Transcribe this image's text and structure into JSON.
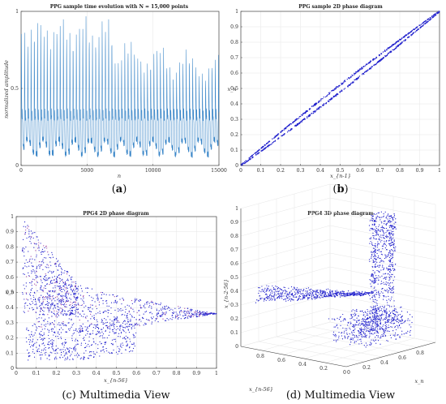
{
  "colors": {
    "series_a": "#3a86c8",
    "series_dark": "#2020cc",
    "axis": "#444444",
    "grid": "#e6e6e6"
  },
  "chart_data": [
    {
      "id": "a",
      "type": "line",
      "title": "PPG sample time evolution with N = 15,000 points",
      "xlabel": "n",
      "ylabel": "normalized amplitude",
      "xlim": [
        0,
        15000
      ],
      "ylim": [
        0,
        1
      ],
      "xticks": [
        "0",
        "5000",
        "10000",
        "15000"
      ],
      "yticks": [
        "0",
        "0.5",
        "1"
      ],
      "caption_letter": "a",
      "series": [
        {
          "approx": "periodic pulses, peaks ~0.55–1.0 (decreasing after n≈7000), troughs ~0.08–0.2, baseline band ~0.3–0.35"
        }
      ]
    },
    {
      "id": "b",
      "type": "scatter",
      "title": "PPG sample 2D phase diagram",
      "xlabel": "x_{n-1}",
      "ylabel": "x_n",
      "xlim": [
        0,
        1
      ],
      "ylim": [
        0,
        1
      ],
      "xticks": [
        "0",
        "0.1",
        "0.2",
        "0.3",
        "0.4",
        "0.5",
        "0.6",
        "0.7",
        "0.8",
        "0.9",
        "1"
      ],
      "yticks": [
        "0",
        "0.1",
        "0.2",
        "0.3",
        "0.4",
        "0.5",
        "0.6",
        "0.7",
        "0.8",
        "0.9",
        "1"
      ],
      "caption_letter": "b",
      "series": [
        {
          "approx": "narrow elongated loop along the diagonal from (0,0) to (1,1)"
        }
      ]
    },
    {
      "id": "c",
      "type": "scatter",
      "title": "PPG4 2D phase diagram",
      "xlabel": "x_{n-56}",
      "ylabel": "x_n",
      "xlim": [
        0,
        1
      ],
      "ylim": [
        0,
        1
      ],
      "xticks": [
        "0",
        "0.1",
        "0.2",
        "0.3",
        "0.4",
        "0.5",
        "0.6",
        "0.7",
        "0.8",
        "0.9",
        "1"
      ],
      "yticks": [
        "0",
        "0.1",
        "0.2",
        "0.3",
        "0.4",
        "0.5",
        "0.6",
        "0.7",
        "0.8",
        "0.9",
        "1"
      ],
      "caption_text": "Multimedia View",
      "caption_letter": "c",
      "series": [
        {
          "approx": "dense loops from upper-left (x≈0–0.3, y≈0.4–1.0) converging to a point near (1, 0.35); lower band of loops y≈0.05–0.3"
        }
      ]
    },
    {
      "id": "d",
      "type": "scatter",
      "title": "PPG4 3D phase diagram",
      "xlabel": "x_{n-56}",
      "ylabel": "x_n",
      "zlabel": "x_{n-2·56}",
      "zlim": [
        0,
        1
      ],
      "zticks": [
        "0",
        "0.1",
        "0.2",
        "0.3",
        "0.4",
        "0.5",
        "0.6",
        "0.7",
        "0.8",
        "0.9",
        "1"
      ],
      "xticks": [
        "0",
        "0.2",
        "0.4",
        "0.6",
        "0.8"
      ],
      "yticks": [
        "0",
        "0.2",
        "0.4",
        "0.6",
        "0.8"
      ],
      "caption_text": "Multimedia View",
      "caption_letter": "d",
      "series": [
        {
          "approx": "3D attractor: tall spike of loops near the back corner reaching z≈0.97, wings to left (z≈0.35) and a dense base cluster near z≈0.05–0.2"
        }
      ]
    }
  ]
}
